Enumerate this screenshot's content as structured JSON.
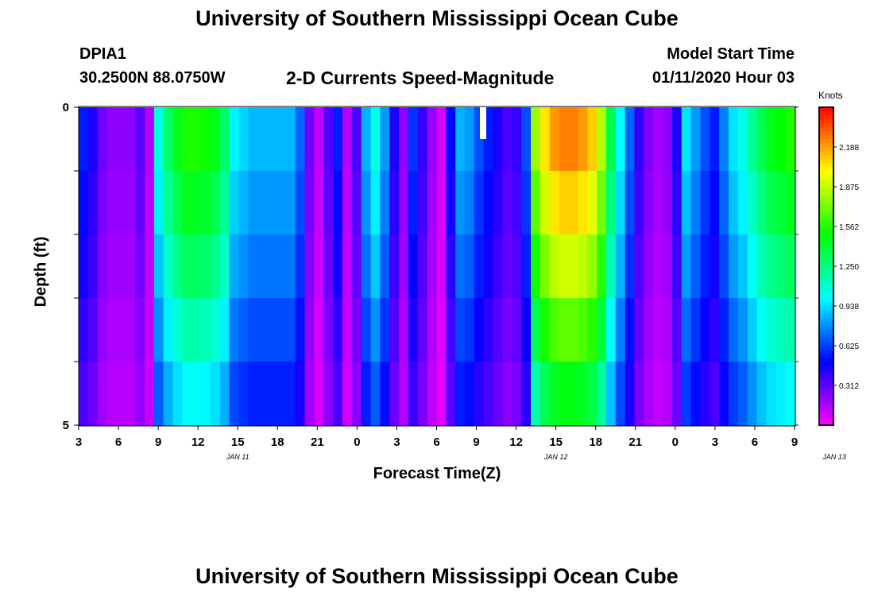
{
  "title_top": "University of Southern Mississippi Ocean Cube",
  "title_bottom": "University of Southern Mississippi Ocean Cube",
  "station": {
    "id": "DPIA1",
    "coords": "30.2500N 88.0750W"
  },
  "model": {
    "label": "Model Start Time",
    "value": "01/11/2020 Hour 03"
  },
  "chart_data": {
    "type": "heatmap",
    "title": "2-D Currents Speed-Magnitude",
    "xlabel": "Forecast Time(Z)",
    "ylabel": "Depth (ft)",
    "x_tick_labels": [
      "3",
      "6",
      "9",
      "12",
      "15",
      "18",
      "21",
      "0",
      "3",
      "6",
      "9",
      "12",
      "15",
      "18",
      "21",
      "0",
      "3",
      "6",
      "9"
    ],
    "date_labels": [
      {
        "label": "JAN 11",
        "at_hour": 12
      },
      {
        "label": "JAN 12",
        "at_hour": 36
      },
      {
        "label": "JAN 13",
        "at_hour": 57
      }
    ],
    "x_range_hours_from_start": [
      0,
      54
    ],
    "ylim": [
      0,
      5
    ],
    "y_tick_labels": [
      "0",
      "5"
    ],
    "depth_rows": [
      0.5,
      1.5,
      2.5,
      3.5,
      4.5
    ],
    "colorbar": {
      "unit": "Knots",
      "min": 0.0,
      "max": 2.5,
      "tick_labels": [
        "0.312",
        "0.625",
        "0.938",
        "1.250",
        "1.562",
        "1.875",
        "2.188"
      ]
    },
    "speed_profile_knots": [
      0.55,
      0.45,
      0.28,
      0.22,
      0.22,
      0.22,
      0.32,
      0.15,
      1.05,
      1.3,
      1.45,
      1.55,
      1.55,
      1.52,
      1.45,
      1.3,
      0.98,
      0.92,
      0.86,
      0.86,
      0.86,
      0.86,
      0.86,
      0.7,
      0.28,
      0.12,
      0.35,
      0.55,
      0.14,
      0.35,
      0.85,
      1.05,
      0.8,
      0.45,
      0.22,
      0.6,
      0.4,
      0.2,
      0.08,
      0.5,
      0.85,
      0.8,
      0.65,
      0.55,
      0.45,
      0.35,
      0.4,
      0.65,
      1.8,
      2.05,
      2.2,
      2.25,
      2.25,
      2.2,
      2.1,
      1.85,
      1.35,
      1.0,
      0.7,
      0.4,
      0.25,
      0.18,
      0.22,
      0.45,
      0.95,
      0.8,
      0.65,
      0.55,
      0.75,
      0.95,
      1.05,
      1.2,
      1.35,
      1.45,
      1.5,
      1.55
    ],
    "depth_attenuation": [
      1.0,
      0.93,
      0.85,
      0.75,
      0.65
    ]
  }
}
